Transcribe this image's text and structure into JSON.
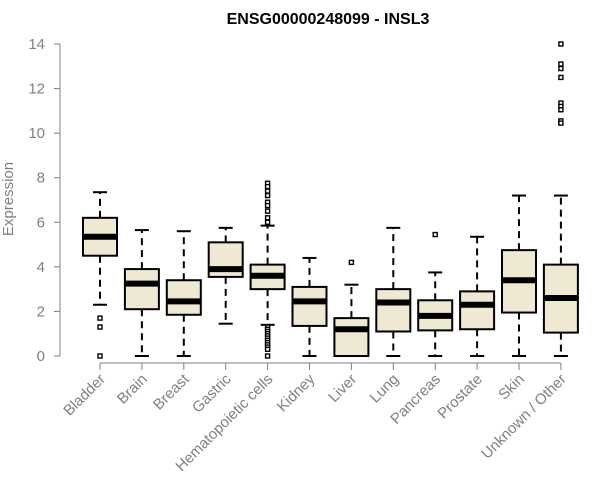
{
  "chart_data": {
    "type": "boxplot",
    "title": "ENSG00000248099 - INSL3",
    "ylabel": "Expression",
    "xlabel": "",
    "ylim": [
      0,
      14
    ],
    "yticks": [
      0,
      2,
      4,
      6,
      8,
      10,
      12,
      14
    ],
    "grid": false,
    "categories": [
      "Bladder",
      "Brain",
      "Breast",
      "Gastric",
      "Hematopoietic cells",
      "Kidney",
      "Liver",
      "Lung",
      "Pancreas",
      "Prostate",
      "Skin",
      "Unknown / Other"
    ],
    "boxes": [
      {
        "whislo": 2.3,
        "q1": 4.5,
        "med": 5.35,
        "q3": 6.2,
        "whishi": 7.35,
        "fliers": [
          1.7,
          1.3,
          0.0
        ]
      },
      {
        "whislo": 0.0,
        "q1": 2.1,
        "med": 3.25,
        "q3": 3.9,
        "whishi": 5.65,
        "fliers": []
      },
      {
        "whislo": 0.0,
        "q1": 1.85,
        "med": 2.45,
        "q3": 3.4,
        "whishi": 5.6,
        "fliers": []
      },
      {
        "whislo": 1.45,
        "q1": 3.55,
        "med": 3.9,
        "q3": 5.1,
        "whishi": 5.75,
        "fliers": []
      },
      {
        "whislo": 1.4,
        "q1": 3.0,
        "med": 3.6,
        "q3": 4.1,
        "whishi": 5.85,
        "fliers": [
          7.75,
          7.6,
          7.4,
          7.2,
          6.9,
          6.75,
          6.5,
          6.2,
          6.0,
          1.3,
          1.2,
          1.1,
          1.0,
          0.9,
          0.8,
          0.7,
          0.6,
          0.5,
          0.4,
          0.3,
          0.0
        ]
      },
      {
        "whislo": 0.0,
        "q1": 1.35,
        "med": 2.45,
        "q3": 3.1,
        "whishi": 4.4,
        "fliers": []
      },
      {
        "whislo": 0.0,
        "q1": 0.0,
        "med": 1.2,
        "q3": 1.7,
        "whishi": 3.2,
        "fliers": [
          4.2
        ]
      },
      {
        "whislo": 0.0,
        "q1": 1.1,
        "med": 2.4,
        "q3": 3.0,
        "whishi": 5.75,
        "fliers": []
      },
      {
        "whislo": 0.0,
        "q1": 1.15,
        "med": 1.8,
        "q3": 2.5,
        "whishi": 3.75,
        "fliers": [
          5.45
        ]
      },
      {
        "whislo": 0.0,
        "q1": 1.2,
        "med": 2.3,
        "q3": 2.9,
        "whishi": 5.35,
        "fliers": []
      },
      {
        "whislo": 0.0,
        "q1": 1.95,
        "med": 3.4,
        "q3": 4.75,
        "whishi": 7.2,
        "fliers": []
      },
      {
        "whislo": 0.0,
        "q1": 1.05,
        "med": 2.6,
        "q3": 4.1,
        "whishi": 7.2,
        "fliers": [
          14.0,
          13.1,
          12.9,
          12.5,
          11.35,
          11.2,
          11.05,
          10.55,
          10.45
        ]
      }
    ],
    "colors": {
      "box_fill": "#efe8d2",
      "stroke": "#000000",
      "axis": "#808080"
    }
  }
}
